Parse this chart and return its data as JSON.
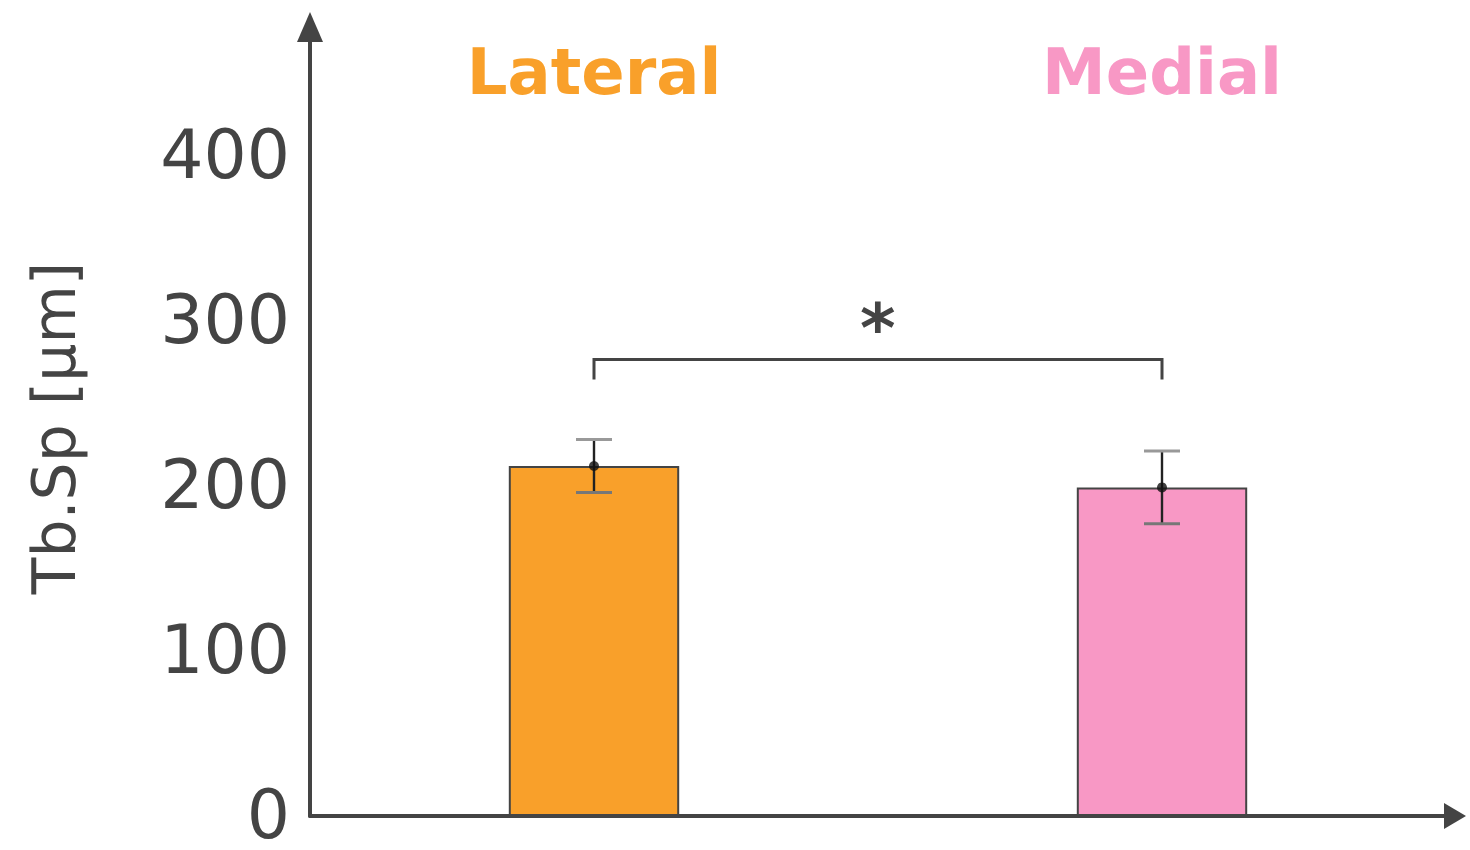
{
  "chart_data": {
    "type": "bar",
    "ylabel": "Tb.Sp [μm]",
    "categories": [
      "Lateral",
      "Medial"
    ],
    "series": [
      {
        "values": [
          212,
          199
        ],
        "colors": [
          "#f9a02a",
          "#f898c5"
        ],
        "errors": [
          16,
          22
        ]
      },
      {
        "type": "scatter",
        "x": [
          "Lateral",
          "Medial"
        ],
        "values": [
          212,
          199
        ],
        "color": "#111111"
      }
    ],
    "marker": "circle",
    "ylim": [
      0,
      470
    ],
    "yticks": [
      0,
      100,
      200,
      300,
      400
    ],
    "grid": false,
    "annotations": [
      "*"
    ]
  }
}
